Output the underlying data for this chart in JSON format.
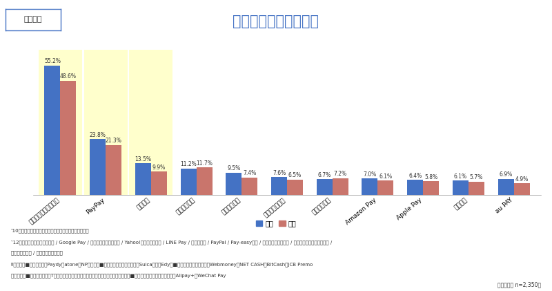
{
  "title": "よく利用する決済手段",
  "label_box": "デジコン",
  "categories": [
    "クレジットカード決済",
    "PayPay",
    "楽天ペイ",
    "キャリア決済",
    "ポイント決済",
    "電子マネー決済",
    "コンビニ決済",
    "Amazon Pay",
    "Apple Pay",
    "銀行振込",
    "au PAY"
  ],
  "male_values": [
    55.2,
    23.8,
    13.5,
    11.2,
    9.5,
    7.6,
    6.7,
    7.0,
    6.4,
    6.1,
    6.9
  ],
  "female_values": [
    48.6,
    21.3,
    9.9,
    11.7,
    7.4,
    6.5,
    7.2,
    6.1,
    5.8,
    5.7,
    4.9
  ],
  "male_color": "#4472C4",
  "female_color": "#C9756C",
  "highlight_indices": [
    0,
    1,
    2
  ],
  "highlight_color": "#FFFFCC",
  "bar_width": 0.35,
  "ylim": [
    0,
    62
  ],
  "legend_male": "男性",
  "legend_female": "女性",
  "footnote1": "‶10位までの決済手段を表示（同率の場合はすべて表示）",
  "footnote2": "‶12位以降の選択肢：口座振替 / Google Pay / プリペイドカード決済 / Yahoo!ウォレット決済 / LINE Pay / 後払い決済 / PayPal / Pay-easy決済 / メルペイネット決済 / リクルートかんたん支払い /",
  "footnote2b": "　　中華系決済 / その他（自由回答）",
  "footnote3": "‼各内訳　■後払い決済：Paydy、atone、NP後払い　■電子マネー決済：モバイルSuica、楽天Edy　■プリペイドカード決済：Webmoney、NET CASH、BitCash、JCB Premo",
  "footnote4": "　　　　　■ポイント決済：Tポイントプログラム、永久不滅ポイント、ネットマイル　■中華系決済：銀貜ネット決済、Alipay+、WeChat Pay",
  "bottom_right": "（複数選択 n=2,350）",
  "bg_color": "#FFFFFF"
}
